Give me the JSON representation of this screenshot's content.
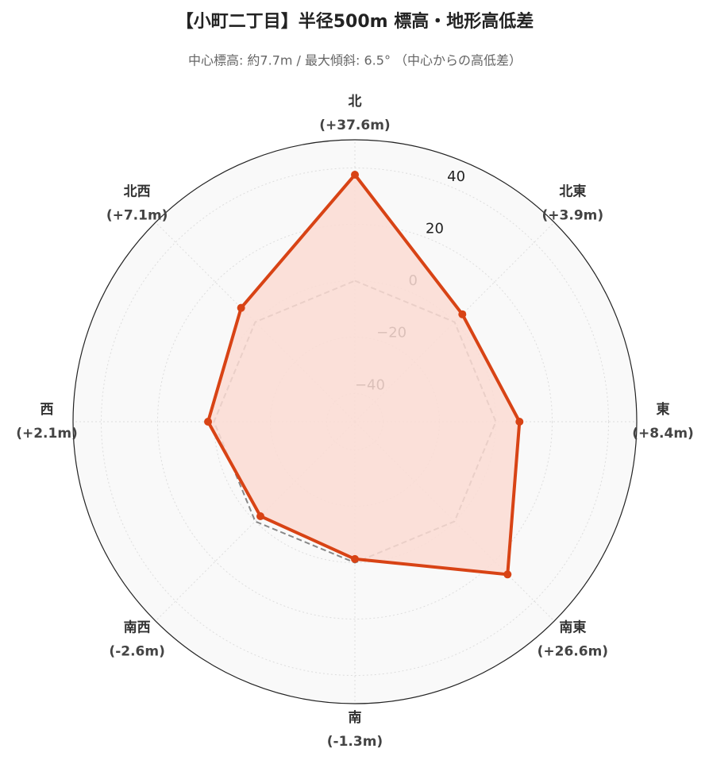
{
  "chart_data": {
    "type": "radar",
    "title": "【小町二丁目】半径500m 標高・地形高低差",
    "subtitle": "中心標高: 約7.7m / 最大傾斜: 6.5° （中心からの高低差）",
    "categories": [
      "北",
      "北東",
      "東",
      "南東",
      "南",
      "南西",
      "西",
      "北西"
    ],
    "values": [
      37.6,
      3.9,
      8.4,
      26.6,
      -1.3,
      -2.6,
      2.1,
      7.1
    ],
    "value_labels": [
      "(+37.6m)",
      "(+3.9m)",
      "(+8.4m)",
      "(+26.6m)",
      "(-1.3m)",
      "(-2.6m)",
      "(+2.1m)",
      "(+7.1m)"
    ],
    "color": "#d84315",
    "fill_color": "#fcdcd4",
    "reference": 0,
    "ylim": [
      -50,
      50
    ],
    "yticks": [
      {
        "value": -40,
        "label": "−40"
      },
      {
        "value": -20,
        "label": "−20"
      },
      0,
      20,
      40
    ],
    "grid": true
  }
}
